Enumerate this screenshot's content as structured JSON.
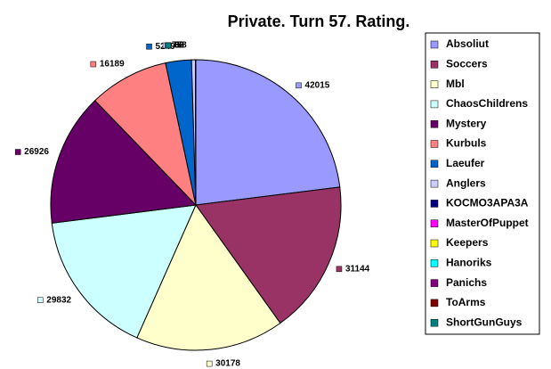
{
  "chart_data": {
    "type": "pie",
    "title": "Private. Turn 57. Rating.",
    "categories": [
      "Absoliut",
      "Soccers",
      "Mbl",
      "ChaosChildrens",
      "Mystery",
      "Kurbuls",
      "Laeufer",
      "Anglers",
      "KOCMO3APA3A",
      "MasterOfPuppet",
      "Keepers",
      "Hanoriks",
      "Panichs",
      "ToArms",
      "ShortGunGuys"
    ],
    "values": [
      42015,
      31144,
      30178,
      29832,
      26926,
      16189,
      5249,
      778,
      52,
      36,
      0,
      0,
      0,
      0,
      0
    ],
    "colors": [
      "#9999FF",
      "#993366",
      "#FFFFCC",
      "#CCFFFF",
      "#660066",
      "#FF8080",
      "#0066CC",
      "#CCCCFF",
      "#000080",
      "#FF00FF",
      "#FFFF00",
      "#00FFFF",
      "#800080",
      "#800000",
      "#008080"
    ],
    "legend": "right"
  }
}
